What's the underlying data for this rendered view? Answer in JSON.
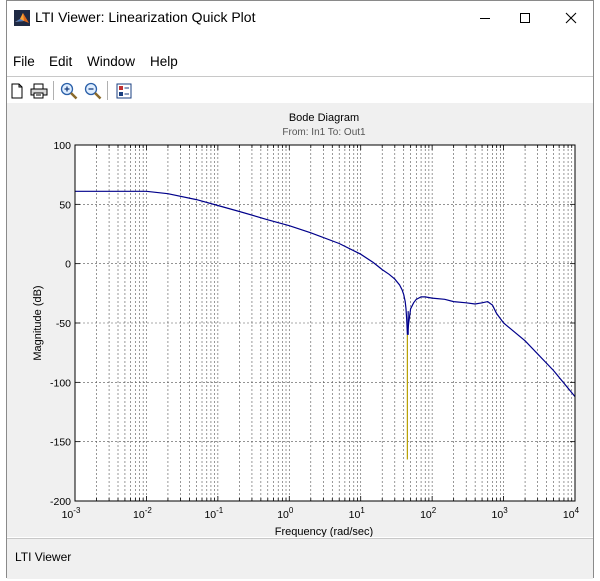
{
  "window": {
    "title": "LTI Viewer: Linearization Quick Plot",
    "controls": {
      "minimize": "minimize-icon",
      "maximize": "maximize-icon",
      "close": "close-icon"
    }
  },
  "menu": [
    "File",
    "Edit",
    "Window",
    "Help"
  ],
  "toolbar": [
    "new-document-icon",
    "print-icon",
    "zoom-in-icon",
    "zoom-out-icon",
    "plot-configuration-icon"
  ],
  "status": {
    "text": "LTI Viewer"
  },
  "chart_data": {
    "type": "line",
    "title": "Bode Diagram",
    "subtitle": "From: In1  To: Out1",
    "xlabel": "Frequency  (rad/sec)",
    "ylabel": "Magnitude (dB)",
    "xscale": "log",
    "xlim": [
      0.001,
      10000
    ],
    "ylim": [
      -200,
      100
    ],
    "x_ticks": [
      {
        "value": 0.001,
        "base": "10",
        "exp": "-3"
      },
      {
        "value": 0.01,
        "base": "10",
        "exp": "-2"
      },
      {
        "value": 0.1,
        "base": "10",
        "exp": "-1"
      },
      {
        "value": 1,
        "base": "10",
        "exp": "0"
      },
      {
        "value": 10,
        "base": "10",
        "exp": "1"
      },
      {
        "value": 100,
        "base": "10",
        "exp": "2"
      },
      {
        "value": 1000,
        "base": "10",
        "exp": "3"
      },
      {
        "value": 10000,
        "base": "10",
        "exp": "4"
      }
    ],
    "y_ticks": [
      100,
      50,
      0,
      -50,
      -100,
      -150,
      -200
    ],
    "grid": true,
    "colors": {
      "line": "#00008b",
      "notch": "#b8a000",
      "grid": "#555555"
    },
    "series": [
      {
        "x": [
          0.001,
          0.002,
          0.005,
          0.01,
          0.02,
          0.05,
          0.1,
          0.2,
          0.5,
          1,
          2,
          5,
          10,
          15,
          20,
          25,
          30,
          35,
          38,
          40,
          42,
          43,
          44,
          45,
          47,
          50,
          55,
          60,
          70,
          80,
          100,
          150,
          200,
          300,
          400,
          500,
          600,
          700,
          800,
          1000,
          2000,
          5000,
          10000
        ],
        "y": [
          61,
          61,
          61,
          61,
          59,
          54,
          49,
          44,
          37,
          32,
          26,
          17,
          8,
          1,
          -5,
          -9,
          -13,
          -18,
          -22,
          -26,
          -32,
          -38,
          -47,
          -60,
          -50,
          -38,
          -33,
          -30,
          -28,
          -28,
          -29,
          -30,
          -32,
          -33,
          -34,
          -33,
          -32,
          -35,
          -42,
          -50,
          -65,
          -90,
          -112
        ]
      }
    ],
    "notch": {
      "x": 45,
      "y": [
        -60,
        -165
      ]
    }
  }
}
